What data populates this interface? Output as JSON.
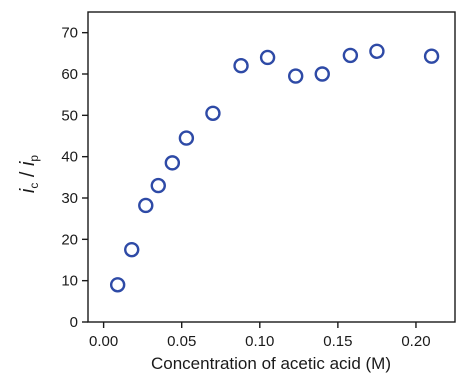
{
  "chart_data": {
    "type": "scatter",
    "title": "",
    "xlabel": "Concentration of acetic acid (M)",
    "ylabel": {
      "main": "i",
      "sub_c": "c",
      "slash": " / ",
      "sub_p": "p"
    },
    "xlim": [
      -0.01,
      0.225
    ],
    "ylim": [
      0,
      75
    ],
    "xticks": [
      0.0,
      0.05,
      0.1,
      0.15,
      0.2
    ],
    "xtick_labels": [
      "0.00",
      "0.05",
      "0.10",
      "0.15",
      "0.20"
    ],
    "yticks": [
      0,
      10,
      20,
      30,
      40,
      50,
      60,
      70
    ],
    "ytick_labels": [
      "0",
      "10",
      "20",
      "30",
      "40",
      "50",
      "60",
      "70"
    ],
    "grid": false,
    "marker_color": "#2e4aa6",
    "series": [
      {
        "x": [
          0.009,
          0.018,
          0.027,
          0.035,
          0.044,
          0.053,
          0.07,
          0.088,
          0.105,
          0.123,
          0.14,
          0.158,
          0.175,
          0.21
        ],
        "y": [
          9.0,
          17.5,
          28.2,
          33.0,
          38.5,
          44.5,
          50.5,
          62.0,
          64.0,
          59.5,
          60.0,
          64.5,
          65.5,
          64.3
        ]
      }
    ]
  }
}
